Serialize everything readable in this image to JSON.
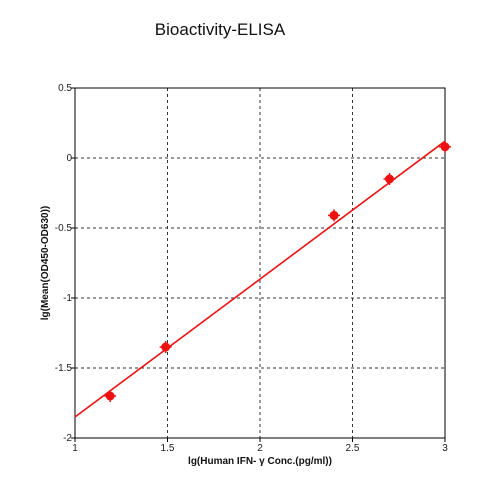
{
  "chart_data": {
    "type": "scatter",
    "title": "Bioactivity-ELISA",
    "xlabel": "lg(Human IFN- γ Conc.(pg/ml))",
    "ylabel": "lg(Mean(OD450-OD630))",
    "xlim": [
      1,
      3
    ],
    "ylim": [
      -2,
      0.5
    ],
    "x_ticks": [
      1,
      1.5,
      2,
      2.5,
      3
    ],
    "x_tick_labels": [
      "1",
      "1.5",
      "2",
      "2.5",
      "3"
    ],
    "y_ticks": [
      0.5,
      0,
      -0.5,
      -1,
      -1.5,
      -2
    ],
    "y_tick_labels": [
      "0.5",
      "0",
      "-0.5",
      "-1",
      "-1.5",
      "-2"
    ],
    "grid": true,
    "series": [
      {
        "x": [
          1.19,
          1.49,
          2.4,
          2.7,
          3.0
        ],
        "y": [
          -1.7,
          -1.35,
          -0.41,
          -0.15,
          0.08
        ],
        "color": "#ee1111"
      }
    ],
    "fit_line": {
      "x": [
        1,
        3
      ],
      "y": [
        -1.85,
        0.12
      ],
      "color": "#ee1111"
    }
  }
}
